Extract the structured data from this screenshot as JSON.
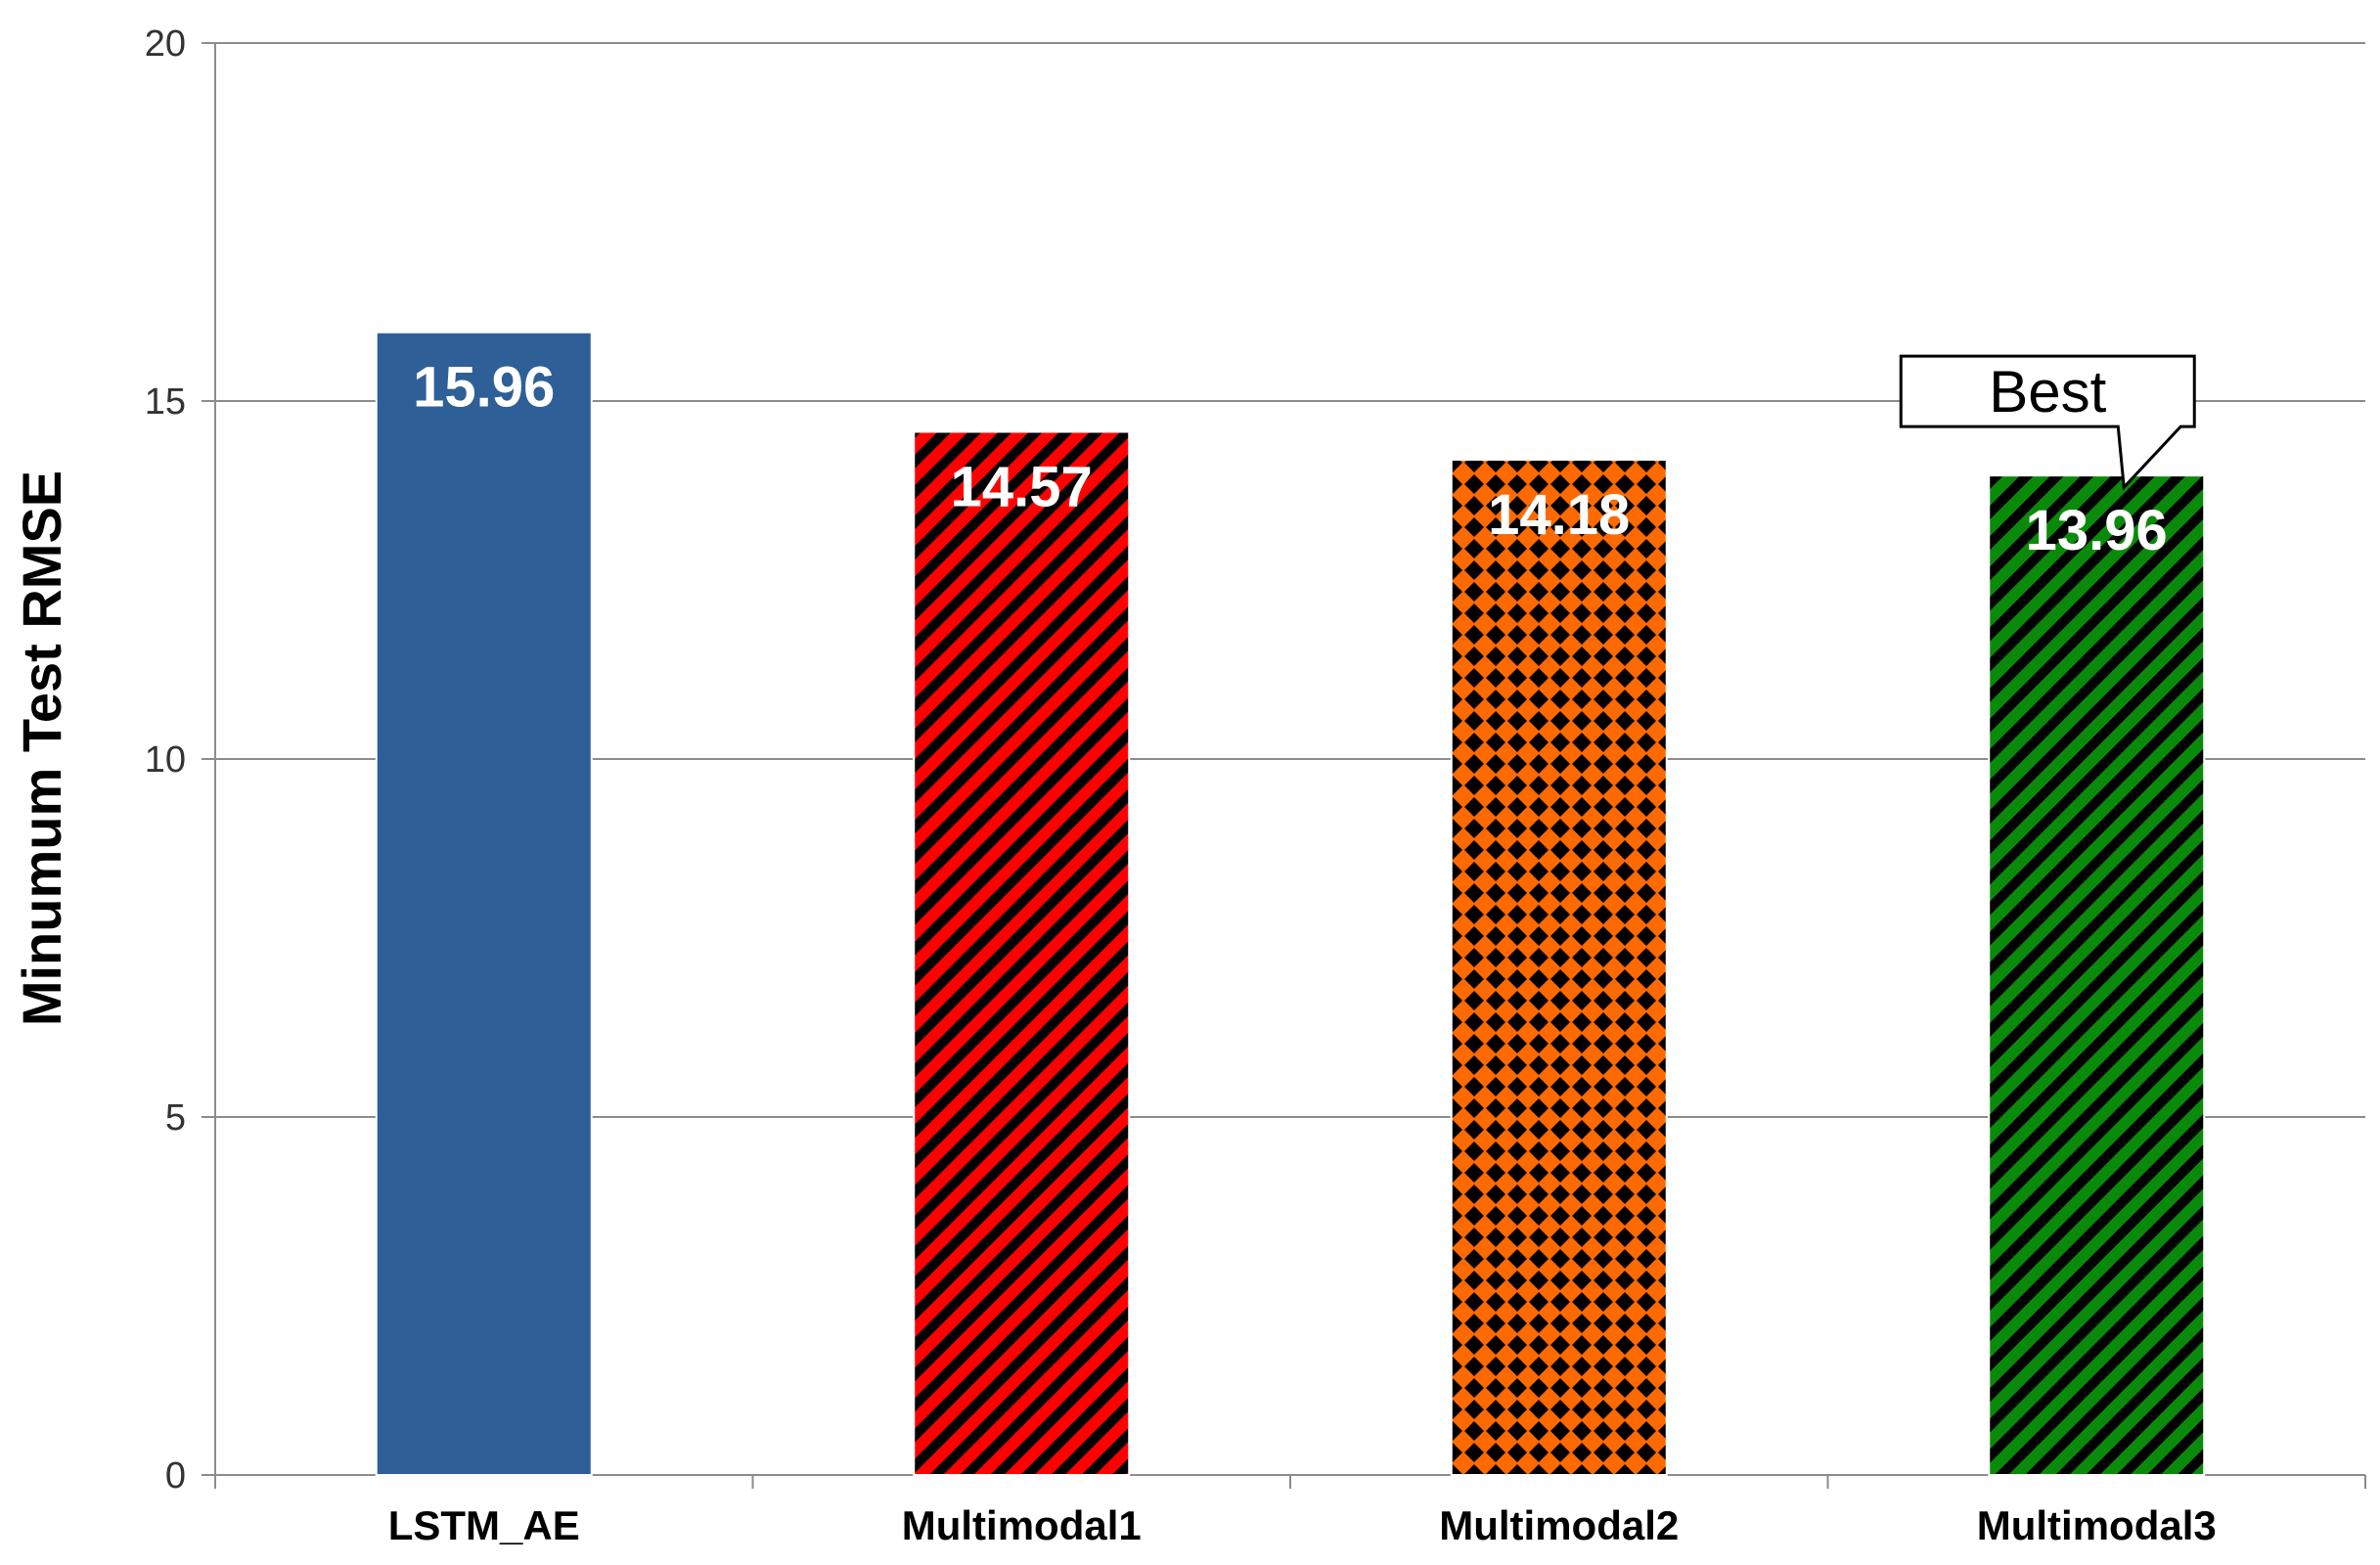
{
  "chart_data": {
    "type": "bar",
    "categories": [
      "LSTM_AE",
      "Multimodal1",
      "Multimodal2",
      "Multimodal3"
    ],
    "values": [
      15.96,
      14.57,
      14.18,
      13.96
    ],
    "data_labels": [
      "15.96",
      "14.57",
      "14.18",
      "13.96"
    ],
    "title": "",
    "xlabel": "",
    "ylabel": "Minumum Test RMSE",
    "ylim": [
      0,
      20
    ],
    "yticks": [
      0,
      5,
      10,
      15,
      20
    ],
    "ytick_labels": [
      "0",
      "5",
      "10",
      "15",
      "20"
    ],
    "grid": true,
    "bar_styles": [
      {
        "color": "#2F5F97",
        "pattern": "solid"
      },
      {
        "color": "#FF0000",
        "pattern": "diagonal-stripes"
      },
      {
        "color": "#FF6A00",
        "pattern": "diamond-dots"
      },
      {
        "color": "#0A8A0A",
        "pattern": "diagonal-stripes"
      }
    ],
    "annotations": [
      {
        "text": "Best",
        "category": "Multimodal3",
        "type": "callout"
      }
    ]
  }
}
